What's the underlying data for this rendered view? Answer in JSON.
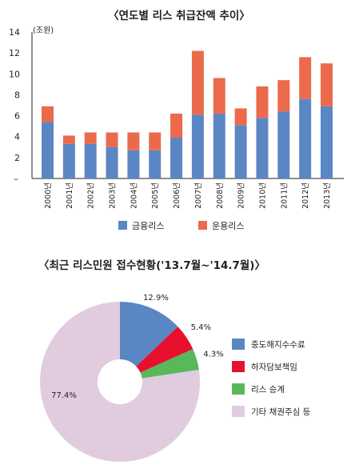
{
  "chart_data": [
    {
      "type": "bar",
      "stacked": true,
      "title": "〈연도별 리스 취급잔액 추이〉",
      "unit": "(조원)",
      "ylim": [
        0,
        14
      ],
      "yticks": [
        "2",
        "4",
        "6",
        "8",
        "10",
        "12",
        "14"
      ],
      "zero_tick": "–",
      "categories": [
        "2000년",
        "2001년",
        "2002년",
        "2003년",
        "2004년",
        "2005년",
        "2006년",
        "2007년",
        "2008년",
        "2009년",
        "2010년",
        "2011년",
        "2012년",
        "2013년"
      ],
      "series": [
        {
          "name": "금융리스",
          "color": "#5b86c4",
          "values": [
            5.4,
            3.3,
            3.3,
            3.0,
            2.7,
            2.7,
            3.9,
            6.1,
            6.2,
            5.1,
            5.8,
            6.4,
            7.6,
            6.9
          ]
        },
        {
          "name": "운용리스",
          "color": "#ec6a4c",
          "values": [
            1.5,
            0.8,
            1.1,
            1.4,
            1.7,
            1.7,
            2.3,
            6.1,
            3.4,
            1.6,
            3.0,
            3.0,
            4.0,
            4.1
          ]
        }
      ],
      "legend_position": "bottom"
    },
    {
      "type": "pie",
      "title": "〈최근 리스민원 접수현황('13.7월~'14.7월)〉",
      "slices": [
        {
          "label": "중도해지수수료",
          "value": 12.9,
          "value_label": "12.9%",
          "color": "#5b86c4"
        },
        {
          "label": "하자담보책임",
          "value": 5.4,
          "value_label": "5.4%",
          "color": "#e8102f"
        },
        {
          "label": "리스 승계",
          "value": 4.3,
          "value_label": "4.3%",
          "color": "#58b85a"
        },
        {
          "label": "기타 채권주심 등",
          "value": 77.4,
          "value_label": "77.4%",
          "color": "#e1ccdf"
        }
      ],
      "donut": true,
      "legend_position": "right"
    }
  ]
}
